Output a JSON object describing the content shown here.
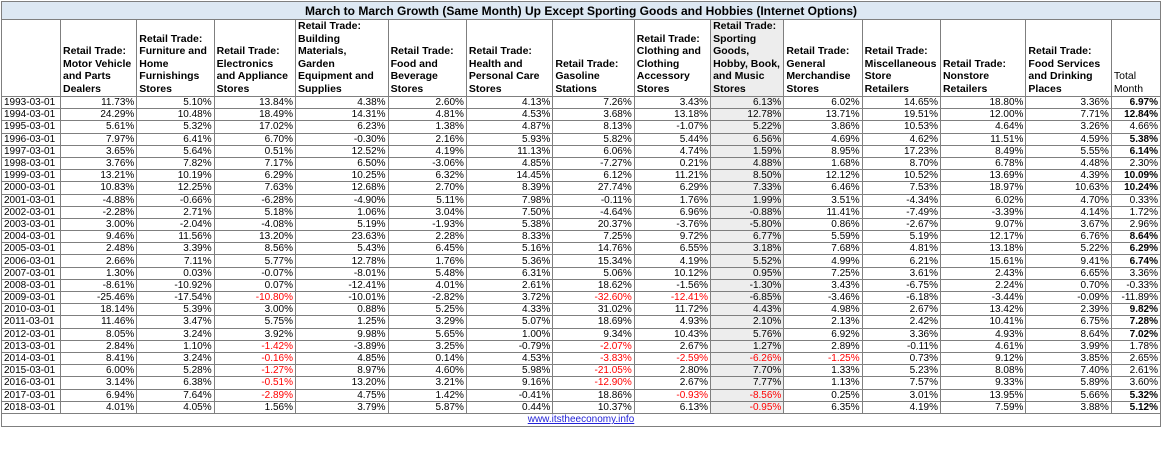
{
  "title": "March to March  Growth (Same Month) Up  Except  Sporting Goods and Hobbies (Internet Options)",
  "columns": [
    "",
    "Retail Trade: Motor Vehicle and Parts Dealers",
    "Retail Trade: Furniture and Home Furnishings Stores",
    "Retail Trade: Electronics and Appliance Stores",
    "Retail Trade: Building Materials, Garden Equipment and Supplies",
    "Retail Trade: Food and Beverage Stores",
    "Retail Trade: Health and Personal Care Stores",
    "Retail Trade: Gasoline Stations",
    "Retail Trade: Clothing and Clothing Accessory Stores",
    "Retail Trade: Sporting Goods, Hobby, Book, and Music Stores",
    "Retail Trade: General Merchandise Stores",
    "Retail Trade: Miscellaneous Store Retailers",
    "Retail Trade: Nonstore Retailers",
    "Retail Trade: Food Services and Drinking Places",
    "Total Month"
  ],
  "highlight_column": 9,
  "colors": {
    "header_fill": "#dde8f3",
    "highlight_fill": "#ededed",
    "negative_red": "#ff0000",
    "link_blue": "#2323d8",
    "grid": "#7f7f7f"
  },
  "rows": [
    {
      "date": "1993-03-01",
      "values": [
        "11.73%",
        "5.10%",
        "13.84%",
        "4.38%",
        "2.60%",
        "4.13%",
        "7.26%",
        "3.43%",
        "6.13%",
        "6.02%",
        "14.65%",
        "18.80%",
        "3.36%",
        "6.97%"
      ],
      "red": [],
      "total_bold": true
    },
    {
      "date": "1994-03-01",
      "values": [
        "24.29%",
        "10.48%",
        "18.49%",
        "14.31%",
        "4.81%",
        "4.53%",
        "3.68%",
        "13.18%",
        "12.78%",
        "13.71%",
        "19.51%",
        "12.00%",
        "7.71%",
        "12.84%"
      ],
      "red": [],
      "total_bold": true
    },
    {
      "date": "1995-03-01",
      "values": [
        "5.61%",
        "5.32%",
        "17.02%",
        "6.23%",
        "1.38%",
        "4.87%",
        "8.13%",
        "-1.07%",
        "5.22%",
        "3.86%",
        "10.53%",
        "4.64%",
        "3.26%",
        "4.66%"
      ],
      "red": [],
      "total_bold": false
    },
    {
      "date": "1996-03-01",
      "values": [
        "7.97%",
        "6.41%",
        "6.70%",
        "-0.30%",
        "2.16%",
        "5.93%",
        "5.82%",
        "5.44%",
        "6.56%",
        "4.69%",
        "4.62%",
        "11.51%",
        "4.59%",
        "5.38%"
      ],
      "red": [],
      "total_bold": true
    },
    {
      "date": "1997-03-01",
      "values": [
        "3.65%",
        "5.64%",
        "0.51%",
        "12.52%",
        "4.19%",
        "11.13%",
        "6.06%",
        "4.74%",
        "1.59%",
        "8.95%",
        "17.23%",
        "8.49%",
        "5.55%",
        "6.14%"
      ],
      "red": [],
      "total_bold": true
    },
    {
      "date": "1998-03-01",
      "values": [
        "3.76%",
        "7.82%",
        "7.17%",
        "6.50%",
        "-3.06%",
        "4.85%",
        "-7.27%",
        "0.21%",
        "4.88%",
        "1.68%",
        "8.70%",
        "6.78%",
        "4.48%",
        "2.30%"
      ],
      "red": [],
      "total_bold": false
    },
    {
      "date": "1999-03-01",
      "values": [
        "13.21%",
        "10.19%",
        "6.29%",
        "10.25%",
        "6.32%",
        "14.45%",
        "6.12%",
        "11.21%",
        "8.50%",
        "12.12%",
        "10.52%",
        "13.69%",
        "4.39%",
        "10.09%"
      ],
      "red": [],
      "total_bold": true
    },
    {
      "date": "2000-03-01",
      "values": [
        "10.83%",
        "12.25%",
        "7.63%",
        "12.68%",
        "2.70%",
        "8.39%",
        "27.74%",
        "6.29%",
        "7.33%",
        "6.46%",
        "7.53%",
        "18.97%",
        "10.63%",
        "10.24%"
      ],
      "red": [],
      "total_bold": true
    },
    {
      "date": "2001-03-01",
      "values": [
        "-4.88%",
        "-0.66%",
        "-6.28%",
        "-4.90%",
        "5.11%",
        "7.98%",
        "-0.11%",
        "1.76%",
        "1.99%",
        "3.51%",
        "-4.34%",
        "6.02%",
        "4.70%",
        "0.33%"
      ],
      "red": [],
      "total_bold": false
    },
    {
      "date": "2002-03-01",
      "values": [
        "-2.28%",
        "2.71%",
        "5.18%",
        "1.06%",
        "3.04%",
        "7.50%",
        "-4.64%",
        "6.96%",
        "-0.88%",
        "11.41%",
        "-7.49%",
        "-3.39%",
        "4.14%",
        "1.72%"
      ],
      "red": [],
      "total_bold": false
    },
    {
      "date": "2003-03-01",
      "values": [
        "3.00%",
        "-2.04%",
        "-4.08%",
        "5.19%",
        "-1.93%",
        "5.38%",
        "20.37%",
        "-3.76%",
        "-5.80%",
        "0.86%",
        "-2.67%",
        "9.07%",
        "3.67%",
        "2.96%"
      ],
      "red": [],
      "total_bold": false
    },
    {
      "date": "2004-03-01",
      "values": [
        "9.46%",
        "11.56%",
        "13.20%",
        "23.63%",
        "2.28%",
        "8.33%",
        "7.25%",
        "9.72%",
        "6.77%",
        "5.59%",
        "5.19%",
        "12.17%",
        "6.76%",
        "8.64%"
      ],
      "red": [],
      "total_bold": true
    },
    {
      "date": "2005-03-01",
      "values": [
        "2.48%",
        "3.39%",
        "8.56%",
        "5.43%",
        "6.45%",
        "5.16%",
        "14.76%",
        "6.55%",
        "3.18%",
        "7.68%",
        "4.81%",
        "13.18%",
        "5.22%",
        "6.29%"
      ],
      "red": [],
      "total_bold": true
    },
    {
      "date": "2006-03-01",
      "values": [
        "2.66%",
        "7.11%",
        "5.77%",
        "12.78%",
        "1.76%",
        "5.36%",
        "15.34%",
        "4.19%",
        "5.52%",
        "4.99%",
        "6.21%",
        "15.61%",
        "9.41%",
        "6.74%"
      ],
      "red": [],
      "total_bold": true
    },
    {
      "date": "2007-03-01",
      "values": [
        "1.30%",
        "0.03%",
        "-0.07%",
        "-8.01%",
        "5.48%",
        "6.31%",
        "5.06%",
        "10.12%",
        "0.95%",
        "7.25%",
        "3.61%",
        "2.43%",
        "6.65%",
        "3.36%"
      ],
      "red": [],
      "total_bold": false
    },
    {
      "date": "2008-03-01",
      "values": [
        "-8.61%",
        "-10.92%",
        "0.07%",
        "-12.41%",
        "4.01%",
        "2.61%",
        "18.62%",
        "-1.56%",
        "-1.30%",
        "3.43%",
        "-6.75%",
        "2.24%",
        "0.70%",
        "-0.33%"
      ],
      "red": [],
      "total_bold": false
    },
    {
      "date": "2009-03-01",
      "values": [
        "-25.46%",
        "-17.54%",
        "-10.80%",
        "-10.01%",
        "-2.82%",
        "3.72%",
        "-32.60%",
        "-12.41%",
        "-6.85%",
        "-3.46%",
        "-6.18%",
        "-3.44%",
        "-0.09%",
        "-11.89%"
      ],
      "red": [
        2,
        6,
        7
      ],
      "total_bold": false
    },
    {
      "date": "2010-03-01",
      "values": [
        "18.14%",
        "5.39%",
        "3.00%",
        "0.88%",
        "5.25%",
        "4.33%",
        "31.02%",
        "11.72%",
        "4.43%",
        "4.98%",
        "2.67%",
        "13.42%",
        "2.39%",
        "9.82%"
      ],
      "red": [],
      "total_bold": true
    },
    {
      "date": "2011-03-01",
      "values": [
        "11.46%",
        "3.47%",
        "5.75%",
        "1.25%",
        "3.29%",
        "5.07%",
        "18.69%",
        "4.93%",
        "2.10%",
        "2.13%",
        "2.42%",
        "10.41%",
        "6.75%",
        "7.28%"
      ],
      "red": [],
      "total_bold": true
    },
    {
      "date": "2012-03-01",
      "values": [
        "8.05%",
        "3.24%",
        "3.92%",
        "9.98%",
        "5.65%",
        "1.00%",
        "9.34%",
        "10.43%",
        "5.76%",
        "6.92%",
        "3.36%",
        "4.93%",
        "8.64%",
        "7.02%"
      ],
      "red": [],
      "total_bold": true
    },
    {
      "date": "2013-03-01",
      "values": [
        "2.84%",
        "1.10%",
        "-1.42%",
        "-3.89%",
        "3.25%",
        "-0.79%",
        "-2.07%",
        "2.67%",
        "1.27%",
        "2.89%",
        "-0.11%",
        "4.61%",
        "3.99%",
        "1.78%"
      ],
      "red": [
        2,
        6
      ],
      "total_bold": false
    },
    {
      "date": "2014-03-01",
      "values": [
        "8.41%",
        "3.24%",
        "-0.16%",
        "4.85%",
        "0.14%",
        "4.53%",
        "-3.83%",
        "-2.59%",
        "-6.26%",
        "-1.25%",
        "0.73%",
        "9.12%",
        "3.85%",
        "2.65%"
      ],
      "red": [
        2,
        6,
        7,
        8,
        9
      ],
      "total_bold": false
    },
    {
      "date": "2015-03-01",
      "values": [
        "6.00%",
        "5.28%",
        "-1.27%",
        "8.97%",
        "4.60%",
        "5.98%",
        "-21.05%",
        "2.80%",
        "7.70%",
        "1.33%",
        "5.23%",
        "8.08%",
        "7.40%",
        "2.61%"
      ],
      "red": [
        2,
        6
      ],
      "total_bold": false
    },
    {
      "date": "2016-03-01",
      "values": [
        "3.14%",
        "6.38%",
        "-0.51%",
        "13.20%",
        "3.21%",
        "9.16%",
        "-12.90%",
        "2.67%",
        "7.77%",
        "1.13%",
        "7.57%",
        "9.33%",
        "5.89%",
        "3.60%"
      ],
      "red": [
        2,
        6
      ],
      "total_bold": false
    },
    {
      "date": "2017-03-01",
      "values": [
        "6.94%",
        "7.64%",
        "-2.89%",
        "4.75%",
        "1.42%",
        "-0.41%",
        "18.86%",
        "-0.93%",
        "-8.56%",
        "0.25%",
        "3.01%",
        "13.95%",
        "5.66%",
        "5.32%"
      ],
      "red": [
        2,
        7,
        8
      ],
      "total_bold": true
    },
    {
      "date": "2018-03-01",
      "values": [
        "4.01%",
        "4.05%",
        "1.56%",
        "3.79%",
        "5.87%",
        "0.44%",
        "10.37%",
        "6.13%",
        "-0.95%",
        "6.35%",
        "4.19%",
        "7.59%",
        "3.88%",
        "5.12%"
      ],
      "red": [
        8
      ],
      "total_bold": true
    }
  ],
  "footer": {
    "link_text": "www.itstheeconomy.info"
  }
}
